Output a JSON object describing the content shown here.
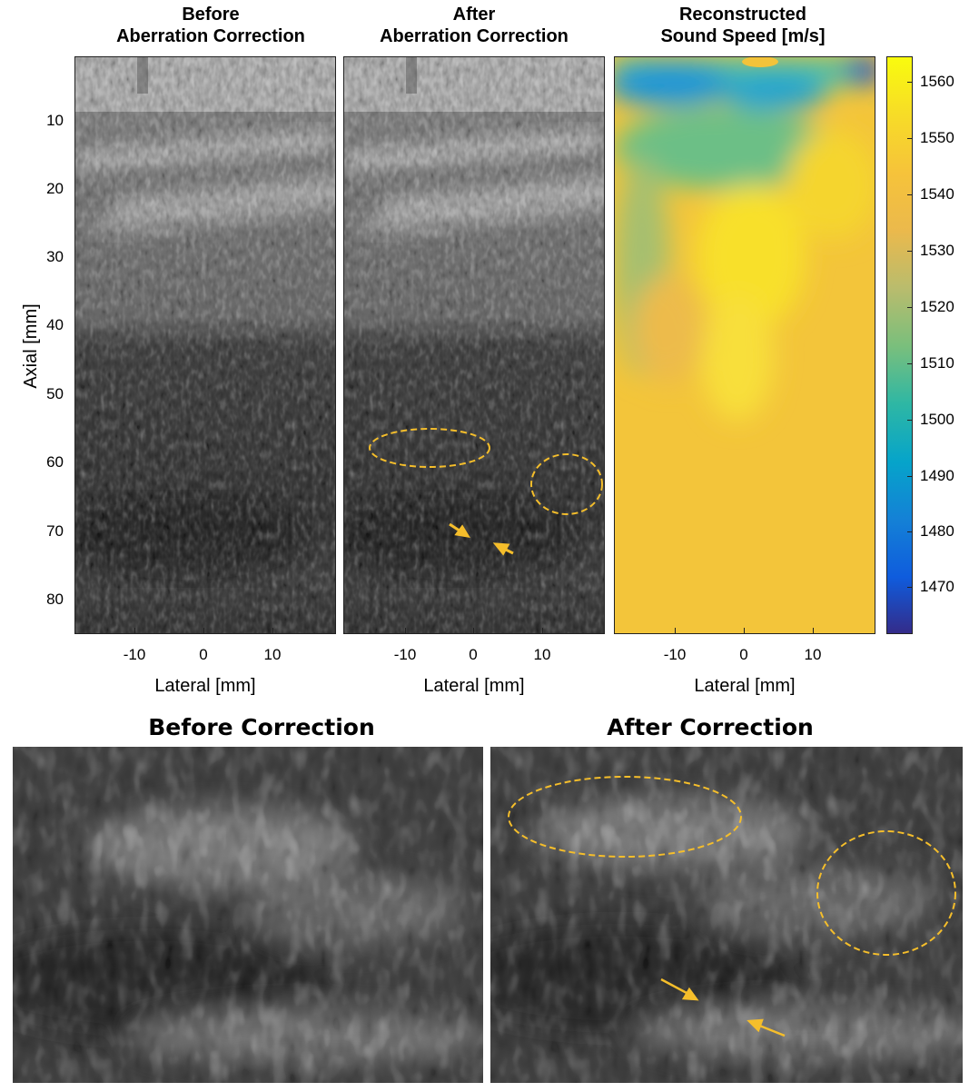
{
  "top_row": {
    "panels": [
      {
        "title_line1": "Before",
        "title_line2": "Aberration Correction",
        "xlabel": "Lateral [mm]"
      },
      {
        "title_line1": "After",
        "title_line2": "Aberration Correction",
        "xlabel": "Lateral [mm]"
      },
      {
        "title_line1": "Reconstructed",
        "title_line2": "Sound Speed [m/s]",
        "xlabel": "Lateral [mm]"
      }
    ],
    "ylabel": "Axial [mm]",
    "y_ticks": [
      "10",
      "20",
      "30",
      "40",
      "50",
      "60",
      "70",
      "80"
    ],
    "x_ticks": [
      "-10",
      "0",
      "10"
    ],
    "colorbar": {
      "ticks": [
        "1560",
        "1550",
        "1540",
        "1530",
        "1520",
        "1510",
        "1500",
        "1490",
        "1480",
        "1470"
      ],
      "colormap": "parula",
      "range": [
        1462,
        1565
      ]
    }
  },
  "bottom_row": {
    "panels": [
      {
        "title": "Before Correction"
      },
      {
        "title": "After Correction"
      }
    ]
  },
  "annotations": {
    "color": "#F5BE2B",
    "style": "dashed ellipses and arrows marking regions in the after-correction images"
  },
  "image_content": {
    "modality": "B-mode ultrasound (grayscale speckle)",
    "sound_speed_map": "parula colormap, mostly yellow-orange with a blue band near the top"
  }
}
